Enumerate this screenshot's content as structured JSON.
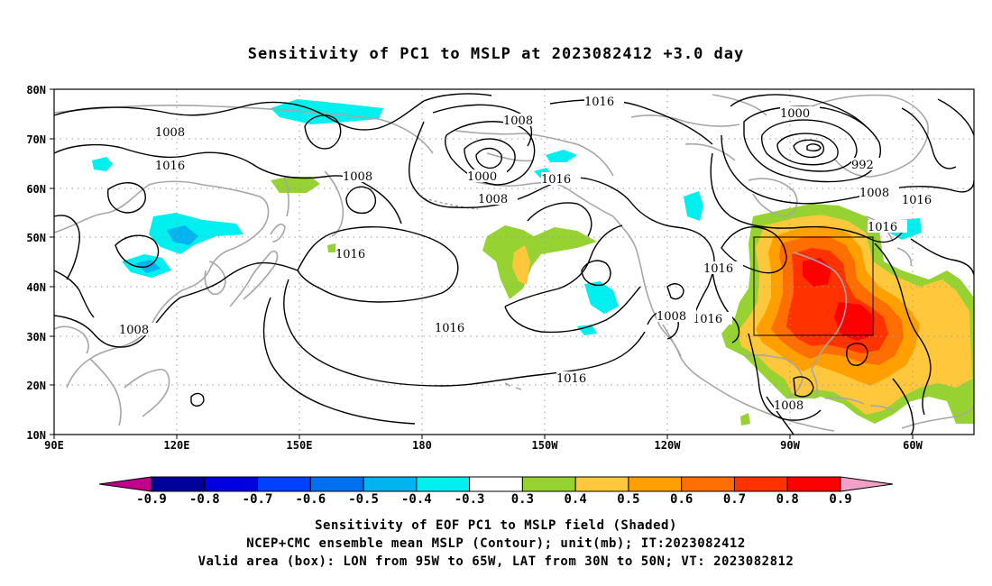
{
  "title": "Sensitivity of PC1 to MSLP at 2023082412 +3.0 day",
  "map": {
    "lat_labels": [
      "80N",
      "70N",
      "60N",
      "50N",
      "40N",
      "30N",
      "20N",
      "10N"
    ],
    "lon_labels": [
      "90E",
      "120E",
      "150E",
      "180",
      "150W",
      "120W",
      "90W",
      "60W"
    ],
    "lon_range": [
      "90E",
      "45W"
    ],
    "lat_range": [
      "10N",
      "80N"
    ],
    "valid_box": {
      "lon": [
        "95W",
        "65W"
      ],
      "lat": [
        "30N",
        "50N"
      ]
    },
    "contour_labels": [
      "1008",
      "1016",
      "1008",
      "1016",
      "1008",
      "1008",
      "1016",
      "1000",
      "1008",
      "1016",
      "1016",
      "1016",
      "1000",
      "992",
      "1008",
      "1016",
      "1016",
      "1016",
      "1016",
      "1008",
      "1016",
      "1008"
    ],
    "colors": {
      "coast": "#a6a6a6",
      "contour": "#000000",
      "box": "#000000"
    }
  },
  "colorbar": {
    "labels": [
      "-0.9",
      "-0.8",
      "-0.7",
      "-0.6",
      "-0.5",
      "-0.4",
      "-0.3",
      "0.3",
      "0.4",
      "0.5",
      "0.6",
      "0.7",
      "0.8",
      "0.9"
    ],
    "low_end_color": "#c0008c",
    "high_end_color": "#f2a0c8",
    "bins": [
      "#00009a",
      "#0000e0",
      "#0040ff",
      "#0070f0",
      "#00b4f0",
      "#00f0f0",
      "#ffffff",
      "#96d232",
      "#ffc83c",
      "#ffa000",
      "#ff6e00",
      "#ff3200",
      "#ff0000"
    ]
  },
  "captions": [
    "Sensitivity of EOF PC1 to MSLP field (Shaded)",
    "NCEP+CMC ensemble mean MSLP (Contour); unit(mb); IT:2023082412",
    "Valid area (box): LON from 95W to 65W, LAT from 30N to 50N; VT: 2023082812"
  ]
}
